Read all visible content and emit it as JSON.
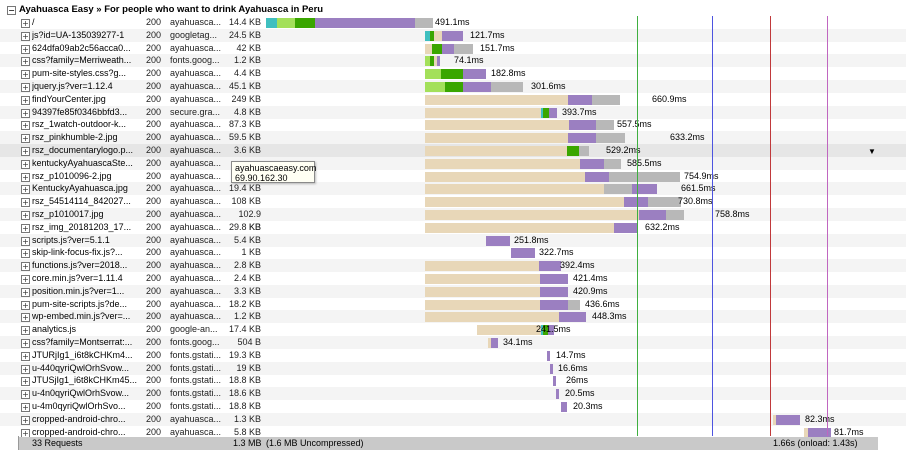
{
  "page_title": "Ayahuasca Easy » For people who want to drink Ayahuasca in Peru",
  "colors": {
    "wait": "#e8d7b8",
    "dns": "#3fbfbf",
    "connect": "#a3e05a",
    "ssl": "#3aa600",
    "ttfb": "#9b7fc1",
    "download": "#b8b8b8",
    "domcontent": "#4d54e0",
    "onload_green": "#3faf40",
    "onload_red": "#c0393b",
    "purple_line": "#c066c0"
  },
  "requests": [
    {
      "url": "/",
      "status": "200",
      "domain": "ayahuasca...",
      "size": "14.4 KB",
      "time": "491.1ms"
    },
    {
      "url": "js?id=UA-135039277-1",
      "status": "200",
      "domain": "googletag...",
      "size": "24.5 KB",
      "time": "121.7ms"
    },
    {
      "url": "624dfa09ab2c56acca0...",
      "status": "200",
      "domain": "ayahuasca...",
      "size": "42 KB",
      "time": "151.7ms"
    },
    {
      "url": "css?family=Merriweath...",
      "status": "200",
      "domain": "fonts.goog...",
      "size": "1.2 KB",
      "time": "74.1ms"
    },
    {
      "url": "pum-site-styles.css?g...",
      "status": "200",
      "domain": "ayahuasca...",
      "size": "4.4 KB",
      "time": "182.8ms"
    },
    {
      "url": "jquery.js?ver=1.12.4",
      "status": "200",
      "domain": "ayahuasca...",
      "size": "45.1 KB",
      "time": "301.6ms"
    },
    {
      "url": "findYourCenter.jpg",
      "status": "200",
      "domain": "ayahuasca...",
      "size": "249 KB",
      "time": "660.9ms"
    },
    {
      "url": "94397fe85f0346bbfd3...",
      "status": "200",
      "domain": "secure.gra...",
      "size": "4.8 KB",
      "time": "393.7ms"
    },
    {
      "url": "rsz_1watch-outdoor-k...",
      "status": "200",
      "domain": "ayahuasca...",
      "size": "87.3 KB",
      "time": "557.5ms"
    },
    {
      "url": "rsz_pinkhumble-2.jpg",
      "status": "200",
      "domain": "ayahuasca...",
      "size": "59.5 KB",
      "time": "633.2ms"
    },
    {
      "url": "rsz_documentarylogo.p...",
      "status": "200",
      "domain": "ayahuasca...",
      "size": "3.6 KB",
      "time": "529.2ms"
    },
    {
      "url": "kentuckyAyahuascaSte...",
      "status": "200",
      "domain": "ayahuasca...",
      "size": "",
      "time": "585.5ms"
    },
    {
      "url": "rsz_p1010096-2.jpg",
      "status": "200",
      "domain": "ayahuasca...",
      "size": "",
      "time": "754.9ms"
    },
    {
      "url": "KentuckyAyahuasca.jpg",
      "status": "200",
      "domain": "ayahuasca...",
      "size": "19.4 KB",
      "time": "661.5ms"
    },
    {
      "url": "rsz_54514114_842027...",
      "status": "200",
      "domain": "ayahuasca...",
      "size": "108 KB",
      "time": "730.8ms"
    },
    {
      "url": "rsz_p1010017.jpg",
      "status": "200",
      "domain": "ayahuasca...",
      "size": "102.9 KB",
      "time": "758.8ms"
    },
    {
      "url": "rsz_img_20181203_17...",
      "status": "200",
      "domain": "ayahuasca...",
      "size": "29.8 KB",
      "time": "632.2ms"
    },
    {
      "url": "scripts.js?ver=5.1.1",
      "status": "200",
      "domain": "ayahuasca...",
      "size": "5.4 KB",
      "time": "251.8ms"
    },
    {
      "url": "skip-link-focus-fix.js?...",
      "status": "200",
      "domain": "ayahuasca...",
      "size": "1 KB",
      "time": "322.7ms"
    },
    {
      "url": "functions.js?ver=2018...",
      "status": "200",
      "domain": "ayahuasca...",
      "size": "2.8 KB",
      "time": "392.4ms"
    },
    {
      "url": "core.min.js?ver=1.11.4",
      "status": "200",
      "domain": "ayahuasca...",
      "size": "2.4 KB",
      "time": "421.4ms"
    },
    {
      "url": "position.min.js?ver=1...",
      "status": "200",
      "domain": "ayahuasca...",
      "size": "3.3 KB",
      "time": "420.9ms"
    },
    {
      "url": "pum-site-scripts.js?de...",
      "status": "200",
      "domain": "ayahuasca...",
      "size": "18.2 KB",
      "time": "436.6ms"
    },
    {
      "url": "wp-embed.min.js?ver=...",
      "status": "200",
      "domain": "ayahuasca...",
      "size": "1.2 KB",
      "time": "448.3ms"
    },
    {
      "url": "analytics.js",
      "status": "200",
      "domain": "google-an...",
      "size": "17.4 KB",
      "time": "241.5ms"
    },
    {
      "url": "css?family=Montserrat:...",
      "status": "200",
      "domain": "fonts.goog...",
      "size": "504 B",
      "time": "34.1ms"
    },
    {
      "url": "JTURjIg1_i6t8kCHKm4...",
      "status": "200",
      "domain": "fonts.gstati...",
      "size": "19.3 KB",
      "time": "14.7ms"
    },
    {
      "url": "u-440qyriQwlOrhSvow...",
      "status": "200",
      "domain": "fonts.gstati...",
      "size": "19 KB",
      "time": "16.6ms"
    },
    {
      "url": "JTUSjIg1_i6t8kCHKm45...",
      "status": "200",
      "domain": "fonts.gstati...",
      "size": "18.8 KB",
      "time": "26ms"
    },
    {
      "url": "u-4n0qyriQwlOrhSvow...",
      "status": "200",
      "domain": "fonts.gstati...",
      "size": "18.6 KB",
      "time": "20.5ms"
    },
    {
      "url": "u-4m0qyriQwlOrhSvo...",
      "status": "200",
      "domain": "fonts.gstati...",
      "size": "18.8 KB",
      "time": "20.3ms"
    },
    {
      "url": "cropped-android-chro...",
      "status": "200",
      "domain": "ayahuasca...",
      "size": "1.3 KB",
      "time": "82.3ms"
    },
    {
      "url": "cropped-android-chro...",
      "status": "200",
      "domain": "ayahuasca...",
      "size": "5.8 KB",
      "time": "81.7ms"
    }
  ],
  "tooltip": {
    "host": "ayahuascaeasy.com",
    "ip": "69.90.162.30"
  },
  "footer": {
    "requests": "33 Requests",
    "size": "1.3 MB",
    "uncompressed": "(1.6 MB Uncompressed)",
    "total": "1.66s (onload: 1.43s)"
  },
  "scroll_indicator_icon": "triangle-down-icon"
}
